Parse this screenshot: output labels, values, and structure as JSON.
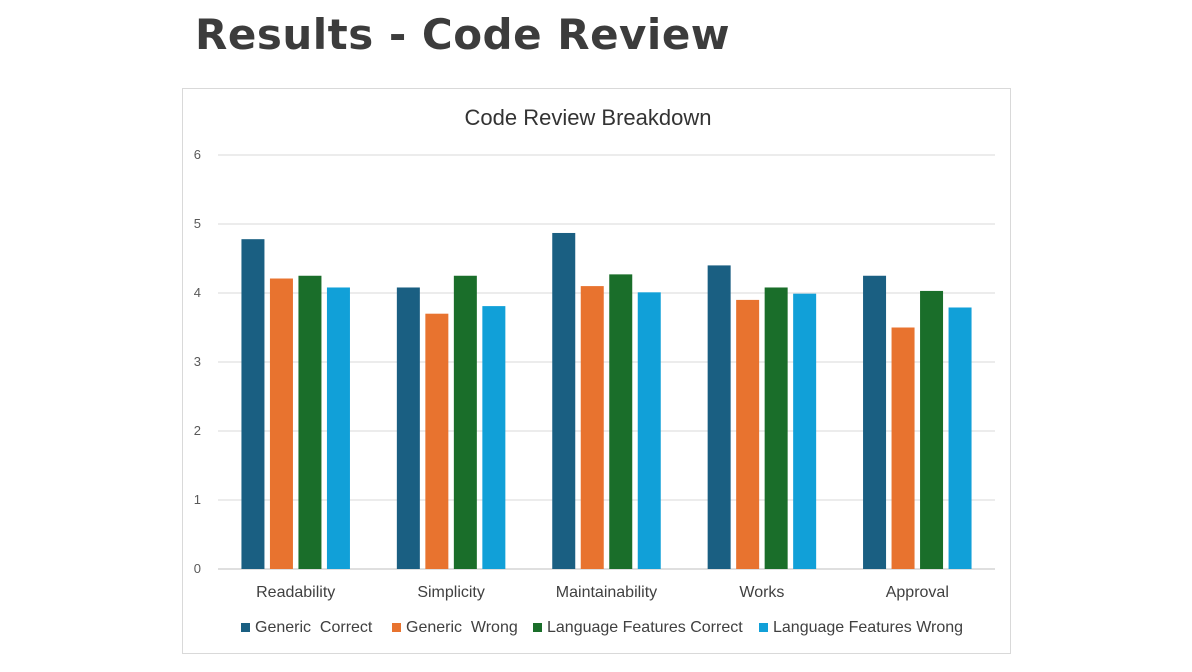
{
  "slide": {
    "title": "Results - Code Review"
  },
  "chart_data": {
    "type": "bar",
    "title": "Code Review Breakdown",
    "xlabel": "",
    "ylabel": "",
    "ylim": [
      0,
      6
    ],
    "yticks": [
      0,
      1,
      2,
      3,
      4,
      5,
      6
    ],
    "grid": true,
    "legend_position": "bottom",
    "categories": [
      "Readability",
      "Simplicity",
      "Maintainability",
      "Works",
      "Approval"
    ],
    "series": [
      {
        "name": "Generic  Correct",
        "color": "#1a5f82",
        "values": [
          4.78,
          4.08,
          4.87,
          4.4,
          4.25
        ]
      },
      {
        "name": "Generic  Wrong",
        "color": "#e8732f",
        "values": [
          4.21,
          3.7,
          4.1,
          3.9,
          3.5
        ]
      },
      {
        "name": "Language Features Correct",
        "color": "#1a6e2a",
        "values": [
          4.25,
          4.25,
          4.27,
          4.08,
          4.03
        ]
      },
      {
        "name": "Language Features Wrong",
        "color": "#11a0d8",
        "values": [
          4.08,
          3.81,
          4.01,
          3.99,
          3.79
        ]
      }
    ]
  }
}
